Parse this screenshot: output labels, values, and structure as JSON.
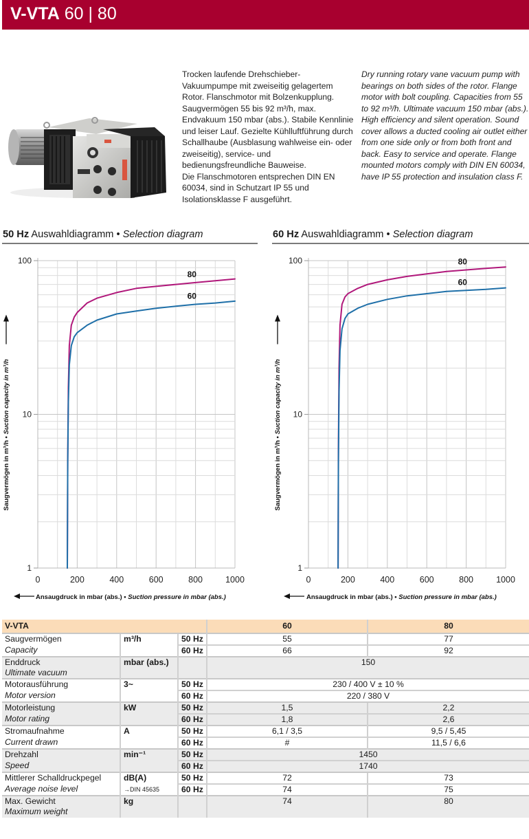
{
  "header": {
    "title_bold": "V-VTA",
    "title_models": "60 | 80",
    "brand_color": "#a8002f"
  },
  "product_image": {
    "alt": "V-VTA rotary vane vacuum pump"
  },
  "description": {
    "de": "Trocken laufende Drehschieber-Vakuumpumpe mit zweiseitig gelagertem Rotor. Flanschmotor mit Bolzenkupplung. Saugvermögen 55 bis 92 m³/h, max. Endvakuum 150 mbar (abs.). Stabile Kennlinie und leiser Lauf. Gezielte Kühlluftführung durch Schallhaube (Ausblasung wahlweise ein- oder zweiseitig), service- und bedienungsfreundliche Bauweise.",
    "de_2": "Die Flanschmotoren entsprechen DIN EN 60034, sind in Schutzart IP 55 und Isolationsklasse F ausgeführt.",
    "en": "Dry running rotary vane vacuum pump with bearings on both sides of the rotor. Flange motor with bolt coupling. Capacities from 55 to 92 m³/h. Ultimate vacuum 150 mbar (abs.). High efficiency and silent operation. Sound cover allows a ducted cooling air outlet either from one side only or from both front and back. Easy to service and operate. Flange mounted motors comply with DIN EN 60034, have IP 55 protection and insulation class F."
  },
  "chart_data": [
    {
      "type": "line",
      "title_bold": "50 Hz",
      "title": "Auswahldiagramm",
      "title_sep": "•",
      "title_en": "Selection diagram",
      "xlabel_de": "Ansaugdruck in mbar (abs.)",
      "xlabel_en": "Suction pressure in mbar (abs.)",
      "ylabel_de": "Saugvermögen in m³/h",
      "ylabel_en": "Suction capacity in m³/h",
      "xlim": [
        0,
        1000
      ],
      "ylim": [
        1,
        100
      ],
      "yscale": "log",
      "xticks": [
        "0",
        "200",
        "400",
        "600",
        "800",
        "1000"
      ],
      "yticks": [
        "1",
        "10",
        "100"
      ],
      "grid": true,
      "series": [
        {
          "name": "80",
          "color": "#b0177a",
          "x": [
            150,
            152,
            155,
            160,
            170,
            185,
            200,
            250,
            300,
            400,
            500,
            600,
            700,
            800,
            900,
            1000
          ],
          "y": [
            1,
            5,
            15,
            28,
            38,
            43,
            46,
            53,
            57,
            62,
            66,
            68,
            70,
            72,
            74,
            76
          ]
        },
        {
          "name": "60",
          "color": "#1e6fa8",
          "x": [
            150,
            152,
            155,
            160,
            170,
            185,
            200,
            250,
            300,
            400,
            500,
            600,
            700,
            800,
            900,
            1000
          ],
          "y": [
            1,
            5,
            12,
            21,
            28,
            32,
            34,
            38,
            41,
            45,
            47,
            49,
            50.5,
            52,
            53,
            54.5
          ]
        }
      ]
    },
    {
      "type": "line",
      "title_bold": "60 Hz",
      "title": "Auswahldiagramm",
      "title_sep": "•",
      "title_en": "Selection diagram",
      "xlabel_de": "Ansaugdruck in mbar (abs.)",
      "xlabel_en": "Suction pressure in mbar (abs.)",
      "ylabel_de": "Saugvermögen in m³/h",
      "ylabel_en": "Suction capacity in m³/h",
      "xlim": [
        0,
        1000
      ],
      "ylim": [
        1,
        100
      ],
      "yscale": "log",
      "xticks": [
        "0",
        "200",
        "400",
        "600",
        "800",
        "1000"
      ],
      "yticks": [
        "1",
        "10",
        "100"
      ],
      "grid": true,
      "series": [
        {
          "name": "80",
          "color": "#b0177a",
          "x": [
            150,
            152,
            155,
            160,
            170,
            185,
            200,
            250,
            300,
            400,
            500,
            600,
            700,
            800,
            900,
            1000
          ],
          "y": [
            1,
            6,
            20,
            38,
            52,
            58,
            61,
            66,
            70,
            75,
            79,
            82,
            85,
            87,
            89,
            91
          ]
        },
        {
          "name": "60",
          "color": "#1e6fa8",
          "x": [
            150,
            152,
            155,
            160,
            170,
            185,
            200,
            250,
            300,
            400,
            500,
            600,
            700,
            800,
            900,
            1000
          ],
          "y": [
            1,
            5,
            14,
            26,
            36,
            42,
            45,
            49,
            52,
            56,
            59,
            61,
            63,
            64,
            65,
            66.5
          ]
        }
      ]
    }
  ],
  "table": {
    "header": {
      "label": "V-VTA",
      "col_60": "60",
      "col_80": "80"
    },
    "rows": [
      {
        "de": "Saugvermögen",
        "en": "Capacity",
        "unit": "m³/h",
        "r50": {
          "hz": "50 Hz",
          "v60": "55",
          "v80": "77"
        },
        "r60": {
          "hz": "60 Hz",
          "v60": "66",
          "v80": "92"
        }
      },
      {
        "de": "Enddruck",
        "en": "Ultimate vacuum",
        "unit": "mbar (abs.)",
        "span": "150"
      },
      {
        "de": "Motorausführung",
        "en": "Motor version",
        "unit": "3~",
        "r50": {
          "hz": "50 Hz",
          "span": "230 / 400 V ± 10 %"
        },
        "r60": {
          "hz": "60 Hz",
          "span": "220 / 380 V"
        }
      },
      {
        "de": "Motorleistung",
        "en": "Motor rating",
        "unit": "kW",
        "r50": {
          "hz": "50 Hz",
          "v60": "1,5",
          "v80": "2,2"
        },
        "r60": {
          "hz": "60 Hz",
          "v60": "1,8",
          "v80": "2,6"
        }
      },
      {
        "de": "Stromaufnahme",
        "en": "Current drawn",
        "unit": "A",
        "r50": {
          "hz": "50 Hz",
          "v60": "6,1 / 3,5",
          "v80": "9,5 / 5,45"
        },
        "r60": {
          "hz": "60 Hz",
          "v60": "#",
          "v80": "11,5 / 6,6"
        }
      },
      {
        "de": "Drehzahl",
        "en": "Speed",
        "unit": "min⁻¹",
        "r50": {
          "hz": "50 Hz",
          "span": "1450"
        },
        "r60": {
          "hz": "60 Hz",
          "span": "1740"
        }
      },
      {
        "de": "Mittlerer Schalldruckpegel",
        "en": "Average noise level",
        "unit": "dB(A)",
        "unit_note": "→DIN 45635",
        "r50": {
          "hz": "50 Hz",
          "v60": "72",
          "v80": "73"
        },
        "r60": {
          "hz": "60 Hz",
          "v60": "74",
          "v80": "75"
        }
      },
      {
        "de": "Max. Gewicht",
        "en": "Maximum weight",
        "unit": "kg",
        "v60": "74",
        "v80": "80"
      }
    ]
  }
}
